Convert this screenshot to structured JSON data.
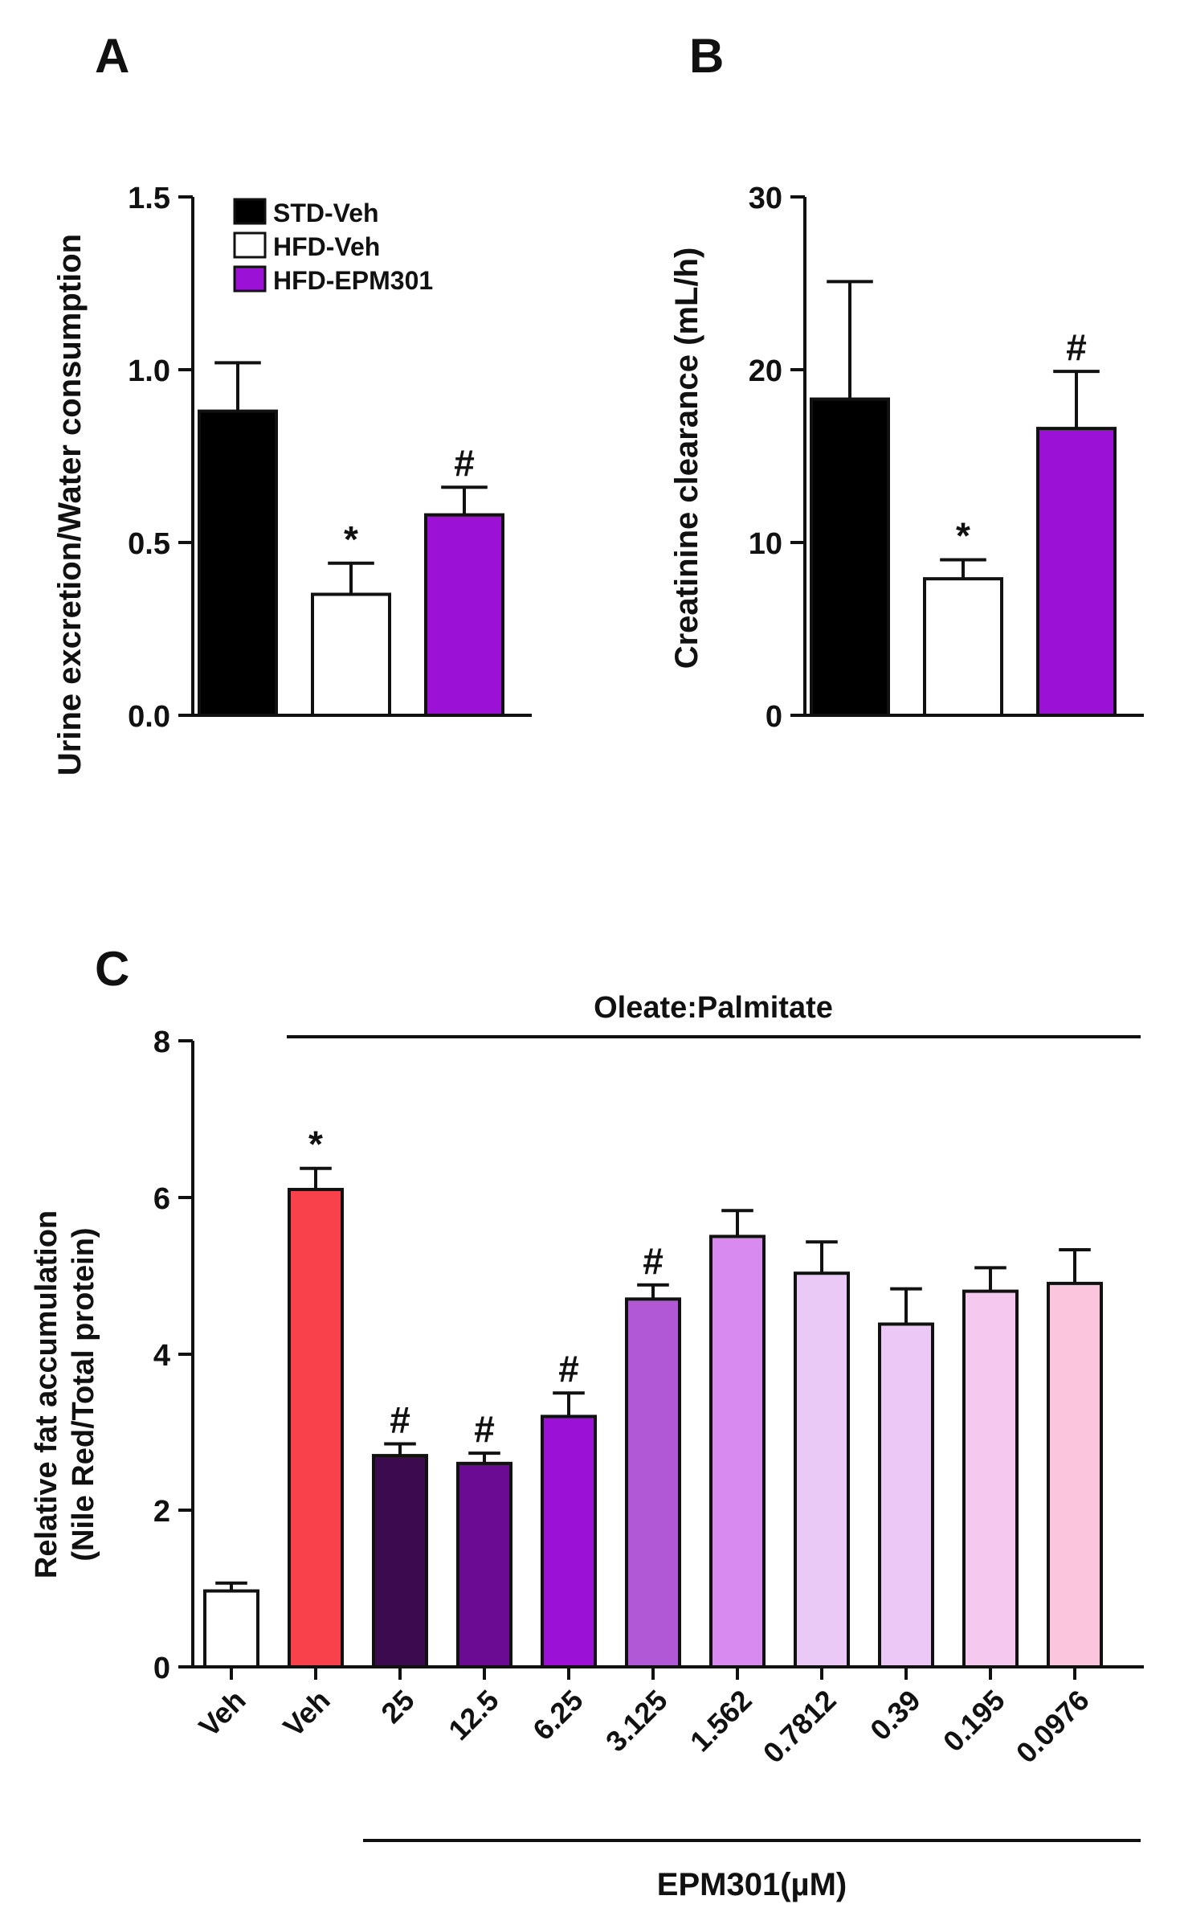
{
  "panels": [
    {
      "id": "A",
      "label": "A",
      "ylabel": "Urine excretion/Water consumption",
      "yticks": [
        "0.0",
        "0.5",
        "1.0",
        "1.5"
      ],
      "legend": [
        {
          "label": "STD-Veh",
          "color": "#000000"
        },
        {
          "label": "HFD-Veh",
          "color": "#ffffff"
        },
        {
          "label": "HFD-EPM301",
          "color": "#9b12d6"
        }
      ]
    },
    {
      "id": "B",
      "label": "B",
      "ylabel": "Creatinine clearance (mL/h)",
      "yticks": [
        "0",
        "10",
        "20",
        "30"
      ]
    },
    {
      "id": "C",
      "label": "C",
      "ylabel_lines": [
        "Relative fat accumulation",
        "(Nile Red/Total protein)"
      ],
      "yticks": [
        "0",
        "2",
        "4",
        "6",
        "8"
      ],
      "top_annotation": "Oleate:Palmitate",
      "bottom_annotation": "EPM301(µM)"
    }
  ],
  "chart_data": [
    {
      "type": "bar",
      "panel": "A",
      "categories": [
        "STD-Veh",
        "HFD-Veh",
        "HFD-EPM301"
      ],
      "values": [
        0.88,
        0.35,
        0.58
      ],
      "errors": [
        0.14,
        0.09,
        0.08
      ],
      "colors": [
        "#000000",
        "#ffffff",
        "#9b12d6"
      ],
      "annotations": [
        "",
        "*",
        "#"
      ],
      "ylim": [
        0,
        1.5
      ],
      "ylabel": "Urine excretion/Water consumption"
    },
    {
      "type": "bar",
      "panel": "B",
      "categories": [
        "STD-Veh",
        "HFD-Veh",
        "HFD-EPM301"
      ],
      "values": [
        18.3,
        7.9,
        16.6
      ],
      "errors": [
        6.8,
        1.1,
        3.3
      ],
      "colors": [
        "#000000",
        "#ffffff",
        "#9b12d6"
      ],
      "annotations": [
        "",
        "*",
        "#"
      ],
      "ylim": [
        0,
        30
      ],
      "ylabel": "Creatinine clearance (mL/h)"
    },
    {
      "type": "bar",
      "panel": "C",
      "categories": [
        "Veh",
        "Veh",
        "25",
        "12.5",
        "6.25",
        "3.125",
        "1.562",
        "0.7812",
        "0.39",
        "0.195",
        "0.0976"
      ],
      "values": [
        0.97,
        6.1,
        2.7,
        2.6,
        3.2,
        4.7,
        5.5,
        5.03,
        4.38,
        4.8,
        4.9
      ],
      "errors": [
        0.1,
        0.27,
        0.15,
        0.13,
        0.3,
        0.18,
        0.33,
        0.4,
        0.45,
        0.3,
        0.43
      ],
      "colors": [
        "#ffffff",
        "#f8414a",
        "#3c0a4e",
        "#6b0a92",
        "#9b12d6",
        "#b158d6",
        "#d98af0",
        "#ebc9f7",
        "#ebc8f5",
        "#f5c9ef",
        "#fbc5de"
      ],
      "annotations": [
        "",
        "*",
        "#",
        "#",
        "#",
        "#",
        "",
        "",
        "",
        "",
        ""
      ],
      "ylim": [
        0,
        8
      ],
      "ylabel": "Relative fat accumulation (Nile Red/Total protein)"
    }
  ]
}
